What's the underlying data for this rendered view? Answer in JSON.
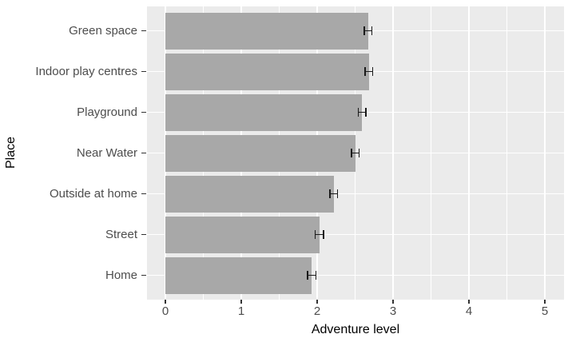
{
  "chart_data": {
    "type": "bar",
    "orientation": "horizontal",
    "title": "",
    "xlabel": "Adventure level",
    "ylabel": "Place",
    "categories": [
      "Green space",
      "Indoor play centres",
      "Playground",
      "Near Water",
      "Outside at home",
      "Street",
      "Home"
    ],
    "values": [
      2.67,
      2.68,
      2.59,
      2.5,
      2.22,
      2.03,
      1.93
    ],
    "errors": [
      0.05,
      0.05,
      0.05,
      0.05,
      0.05,
      0.055,
      0.055
    ],
    "x_ticks": [
      "0",
      "1",
      "2",
      "3",
      "4",
      "5"
    ],
    "x_tick_values": [
      0,
      1,
      2,
      3,
      4,
      5
    ],
    "xlim": [
      -0.25,
      5.25
    ],
    "grid": "white major and minor gridlines on gray panel",
    "legend": "none",
    "colors": {
      "bar_fill": "#a8a8a8",
      "panel_background": "#ebebeb",
      "gridline": "#ffffff",
      "error_bar": "#1a1a1a",
      "axis_text": "#4d4d4d",
      "axis_title": "#000000",
      "tick_mark": "#333333"
    }
  }
}
